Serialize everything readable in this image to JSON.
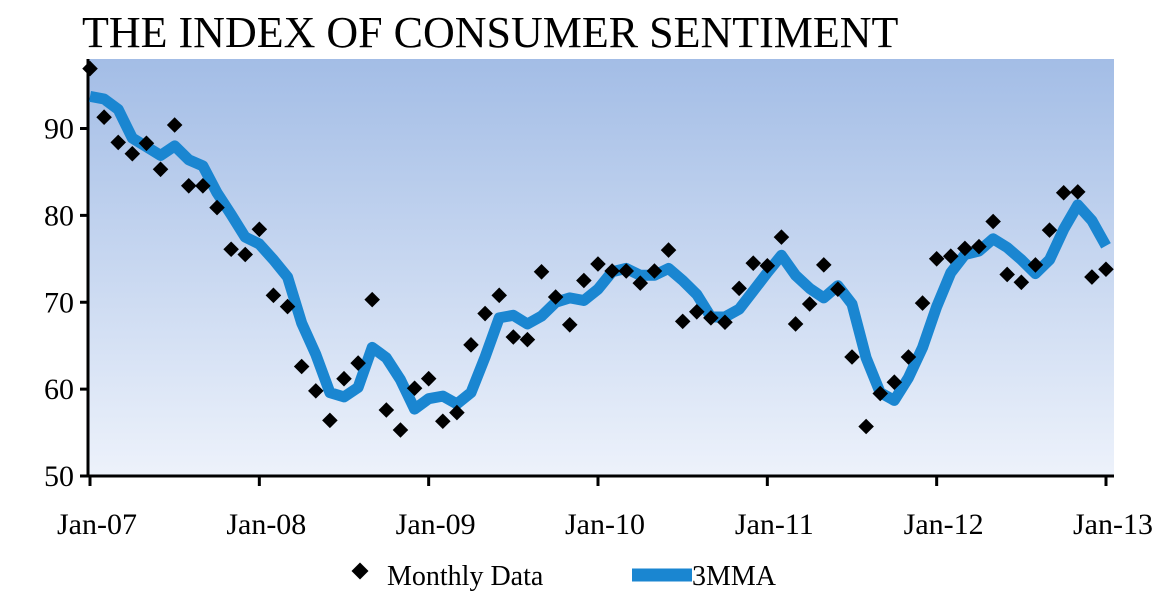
{
  "chart_data": {
    "type": "line",
    "title": "THE INDEX OF CONSUMER SENTIMENT",
    "xlabel": "",
    "ylabel": "",
    "ylim": [
      50,
      98
    ],
    "yticks": [
      "50",
      "60",
      "70",
      "80",
      "90"
    ],
    "x_tick_labels": [
      "Jan-07",
      "Jan-08",
      "Jan-09",
      "Jan-10",
      "Jan-11",
      "Jan-12",
      "Jan-13"
    ],
    "x_start": "Jan-07",
    "x_end": "Jan-13",
    "grid": false,
    "legend_position": "bottom-center",
    "series": [
      {
        "name": "Monthly Data",
        "style": "scatter",
        "marker": "diamond",
        "color": "#000000",
        "values": [
          96.9,
          91.3,
          88.4,
          87.1,
          88.3,
          85.3,
          90.4,
          83.4,
          83.4,
          80.9,
          76.1,
          75.5,
          78.4,
          70.8,
          69.5,
          62.6,
          59.8,
          56.4,
          61.2,
          63.0,
          70.3,
          57.6,
          55.3,
          60.1,
          61.2,
          56.3,
          57.3,
          65.1,
          68.7,
          70.8,
          66.0,
          65.7,
          73.5,
          70.6,
          67.4,
          72.5,
          74.4,
          73.6,
          73.6,
          72.2,
          73.6,
          76.0,
          67.8,
          68.9,
          68.2,
          67.7,
          71.6,
          74.5,
          74.2,
          77.5,
          67.5,
          69.8,
          74.3,
          71.5,
          63.7,
          55.7,
          59.5,
          60.8,
          63.7,
          69.9,
          75.0,
          75.3,
          76.2,
          76.4,
          79.3,
          73.2,
          72.3,
          74.3,
          78.3,
          82.6,
          82.7,
          72.9,
          73.8
        ]
      },
      {
        "name": "3MMA",
        "style": "line",
        "color": "#1a86d1",
        "values": [
          93.7,
          93.4,
          92.2,
          88.9,
          87.9,
          86.9,
          88.0,
          86.4,
          85.7,
          82.6,
          80.1,
          77.5,
          76.7,
          74.9,
          72.9,
          67.6,
          64.0,
          59.6,
          59.1,
          60.2,
          64.8,
          63.6,
          61.1,
          57.7,
          58.9,
          59.2,
          58.3,
          59.6,
          63.7,
          68.2,
          68.5,
          67.5,
          68.4,
          70.0,
          70.5,
          70.2,
          71.5,
          73.5,
          73.9,
          73.1,
          73.1,
          73.9,
          72.5,
          70.9,
          68.3,
          68.3,
          69.2,
          71.3,
          73.4,
          75.4,
          73.1,
          71.6,
          70.5,
          71.9,
          69.8,
          63.6,
          59.6,
          58.7,
          61.3,
          64.8,
          69.5,
          73.4,
          75.5,
          75.9,
          77.3,
          76.3,
          74.9,
          73.3,
          74.9,
          78.4,
          81.2,
          79.4,
          76.5
        ]
      }
    ]
  }
}
